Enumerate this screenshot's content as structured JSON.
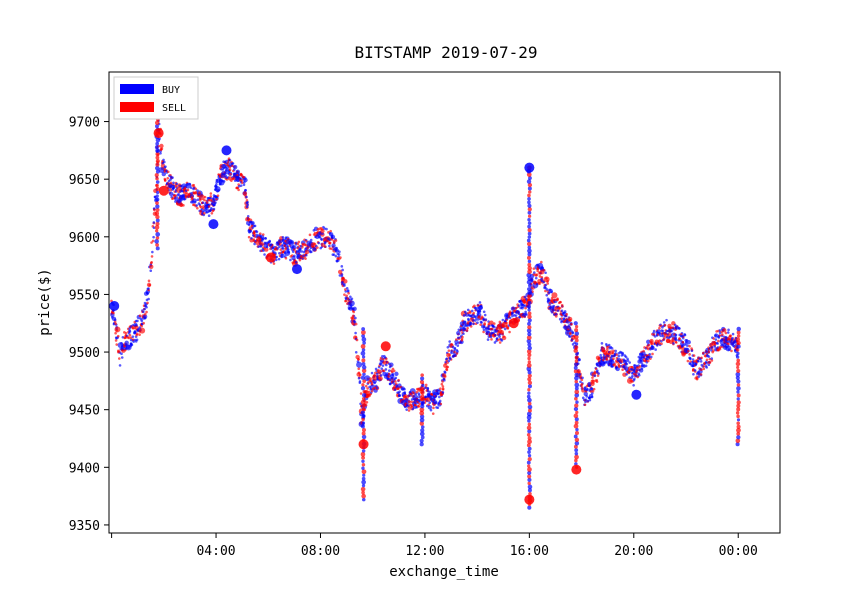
{
  "chart_data": {
    "type": "scatter",
    "title": "BITSTAMP 2019-07-29",
    "xlabel": "exchange_time",
    "ylabel": "price($)",
    "x_tick_labels": [
      "",
      "04:00",
      "08:00",
      "12:00",
      "16:00",
      "20:00",
      "00:00"
    ],
    "y_ticks": [
      9350,
      9400,
      9450,
      9500,
      9550,
      9600,
      9650,
      9700
    ],
    "ylim": [
      9343,
      9743
    ],
    "xlim_hours": [
      -0.1,
      25.6
    ],
    "grid": false,
    "legend_position": "top-left",
    "series": [
      {
        "name": "BUY",
        "color": "#0000ff"
      },
      {
        "name": "SELL",
        "color": "#ff0000"
      }
    ],
    "price_path": [
      [
        0.0,
        9540
      ],
      [
        0.15,
        9525
      ],
      [
        0.3,
        9495
      ],
      [
        0.5,
        9510
      ],
      [
        0.8,
        9515
      ],
      [
        1.0,
        9520
      ],
      [
        1.2,
        9530
      ],
      [
        1.4,
        9550
      ],
      [
        1.55,
        9590
      ],
      [
        1.7,
        9640
      ],
      [
        1.8,
        9700
      ],
      [
        1.9,
        9670
      ],
      [
        2.1,
        9650
      ],
      [
        2.4,
        9640
      ],
      [
        2.7,
        9635
      ],
      [
        3.0,
        9640
      ],
      [
        3.3,
        9632
      ],
      [
        3.6,
        9625
      ],
      [
        3.9,
        9630
      ],
      [
        4.2,
        9655
      ],
      [
        4.5,
        9660
      ],
      [
        4.8,
        9650
      ],
      [
        5.1,
        9645
      ],
      [
        5.3,
        9605
      ],
      [
        5.6,
        9600
      ],
      [
        5.9,
        9590
      ],
      [
        6.2,
        9585
      ],
      [
        6.6,
        9592
      ],
      [
        7.0,
        9585
      ],
      [
        7.4,
        9590
      ],
      [
        7.8,
        9598
      ],
      [
        8.2,
        9600
      ],
      [
        8.6,
        9590
      ],
      [
        9.0,
        9550
      ],
      [
        9.3,
        9530
      ],
      [
        9.5,
        9480
      ],
      [
        9.6,
        9440
      ],
      [
        9.8,
        9470
      ],
      [
        10.1,
        9475
      ],
      [
        10.4,
        9490
      ],
      [
        10.7,
        9480
      ],
      [
        11.0,
        9470
      ],
      [
        11.3,
        9455
      ],
      [
        11.7,
        9460
      ],
      [
        12.0,
        9465
      ],
      [
        12.3,
        9455
      ],
      [
        12.6,
        9460
      ],
      [
        12.9,
        9500
      ],
      [
        13.2,
        9505
      ],
      [
        13.5,
        9525
      ],
      [
        13.8,
        9530
      ],
      [
        14.1,
        9535
      ],
      [
        14.4,
        9520
      ],
      [
        14.8,
        9515
      ],
      [
        15.2,
        9525
      ],
      [
        15.6,
        9535
      ],
      [
        15.9,
        9540
      ],
      [
        16.2,
        9565
      ],
      [
        16.5,
        9570
      ],
      [
        16.8,
        9545
      ],
      [
        17.2,
        9535
      ],
      [
        17.6,
        9520
      ],
      [
        17.9,
        9485
      ],
      [
        18.1,
        9460
      ],
      [
        18.4,
        9470
      ],
      [
        18.8,
        9500
      ],
      [
        19.2,
        9495
      ],
      [
        19.6,
        9490
      ],
      [
        20.0,
        9480
      ],
      [
        20.4,
        9495
      ],
      [
        20.8,
        9510
      ],
      [
        21.2,
        9520
      ],
      [
        21.6,
        9515
      ],
      [
        22.0,
        9505
      ],
      [
        22.4,
        9485
      ],
      [
        22.8,
        9495
      ],
      [
        23.2,
        9510
      ],
      [
        23.6,
        9512
      ],
      [
        23.9,
        9505
      ],
      [
        24.0,
        9500
      ]
    ],
    "spikes": [
      {
        "x": 9.65,
        "low": 9372,
        "high": 9520
      },
      {
        "x": 16.0,
        "low": 9365,
        "high": 9660
      },
      {
        "x": 17.8,
        "low": 9400,
        "high": 9525
      },
      {
        "x": 1.75,
        "low": 9590,
        "high": 9705
      },
      {
        "x": 24.0,
        "low": 9420,
        "high": 9520
      },
      {
        "x": 11.9,
        "low": 9420,
        "high": 9480
      }
    ],
    "large_points": [
      {
        "x": 3.9,
        "y": 9611,
        "side": "BUY"
      },
      {
        "x": 2.0,
        "y": 9640,
        "side": "SELL"
      },
      {
        "x": 7.1,
        "y": 9572,
        "side": "BUY"
      },
      {
        "x": 6.1,
        "y": 9582,
        "side": "SELL"
      },
      {
        "x": 4.4,
        "y": 9675,
        "side": "BUY"
      },
      {
        "x": 16.0,
        "y": 9660,
        "side": "BUY"
      },
      {
        "x": 16.0,
        "y": 9372,
        "side": "SELL"
      },
      {
        "x": 9.65,
        "y": 9420,
        "side": "SELL"
      },
      {
        "x": 17.8,
        "y": 9398,
        "side": "SELL"
      },
      {
        "x": 10.5,
        "y": 9505,
        "side": "SELL"
      },
      {
        "x": 1.8,
        "y": 9690,
        "side": "SELL"
      },
      {
        "x": 0.1,
        "y": 9540,
        "side": "BUY"
      },
      {
        "x": 15.4,
        "y": 9525,
        "side": "SELL"
      },
      {
        "x": 20.1,
        "y": 9463,
        "side": "BUY"
      }
    ]
  }
}
